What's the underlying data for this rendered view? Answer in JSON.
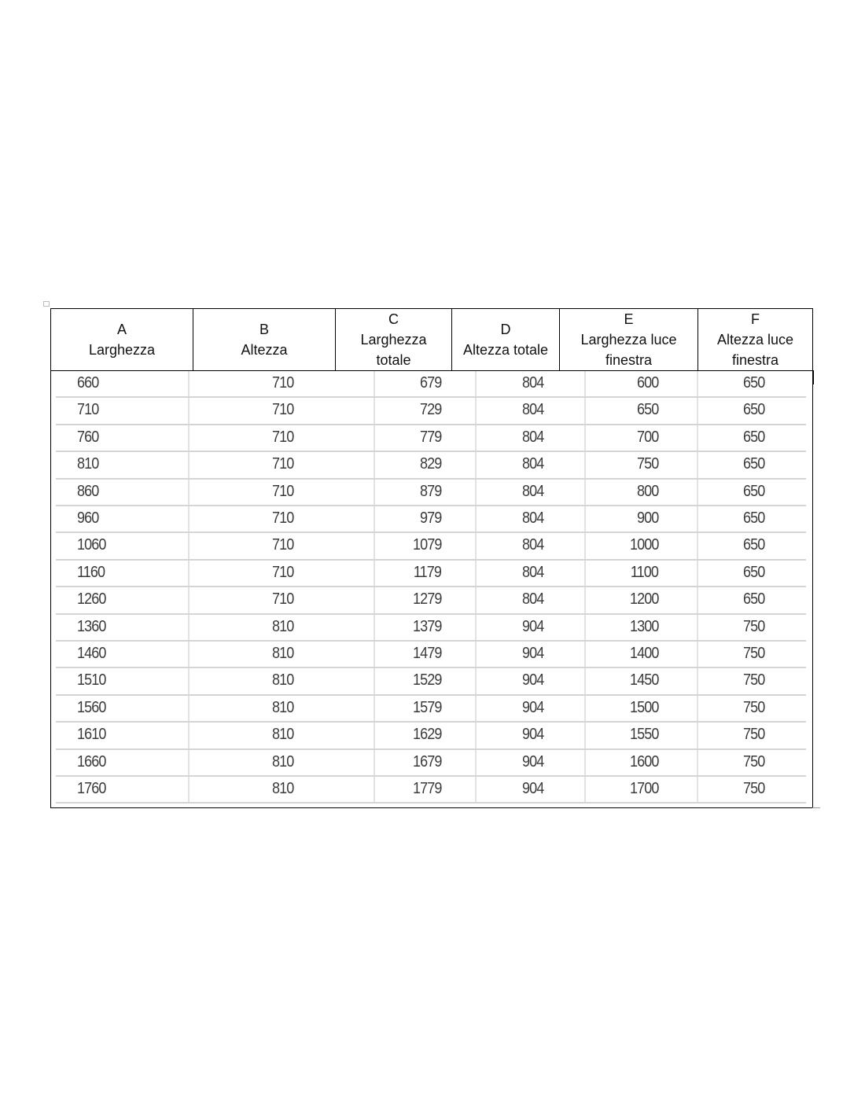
{
  "table": {
    "headers": [
      {
        "letter": "A",
        "label": "Larghezza"
      },
      {
        "letter": "B",
        "label": "Altezza"
      },
      {
        "letter": "C",
        "label": "Larghezza totale"
      },
      {
        "letter": "D",
        "label": "Altezza totale"
      },
      {
        "letter": "E",
        "label": "Larghezza luce finestra"
      },
      {
        "letter": "F",
        "label": "Altezza luce finestra"
      }
    ],
    "rows": [
      [
        "660",
        "710",
        "679",
        "804",
        "600",
        "650"
      ],
      [
        "710",
        "710",
        "729",
        "804",
        "650",
        "650"
      ],
      [
        "760",
        "710",
        "779",
        "804",
        "700",
        "650"
      ],
      [
        "810",
        "710",
        "829",
        "804",
        "750",
        "650"
      ],
      [
        "860",
        "710",
        "879",
        "804",
        "800",
        "650"
      ],
      [
        "960",
        "710",
        "979",
        "804",
        "900",
        "650"
      ],
      [
        "1060",
        "710",
        "1079",
        "804",
        "1000",
        "650"
      ],
      [
        "1160",
        "710",
        "1179",
        "804",
        "1100",
        "650"
      ],
      [
        "1260",
        "710",
        "1279",
        "804",
        "1200",
        "650"
      ],
      [
        "1360",
        "810",
        "1379",
        "904",
        "1300",
        "750"
      ],
      [
        "1460",
        "810",
        "1479",
        "904",
        "1400",
        "750"
      ],
      [
        "1510",
        "810",
        "1529",
        "904",
        "1450",
        "750"
      ],
      [
        "1560",
        "810",
        "1579",
        "904",
        "1500",
        "750"
      ],
      [
        "1610",
        "810",
        "1629",
        "904",
        "1550",
        "750"
      ],
      [
        "1660",
        "810",
        "1679",
        "904",
        "1600",
        "750"
      ],
      [
        "1760",
        "810",
        "1779",
        "904",
        "1700",
        "750"
      ]
    ]
  }
}
